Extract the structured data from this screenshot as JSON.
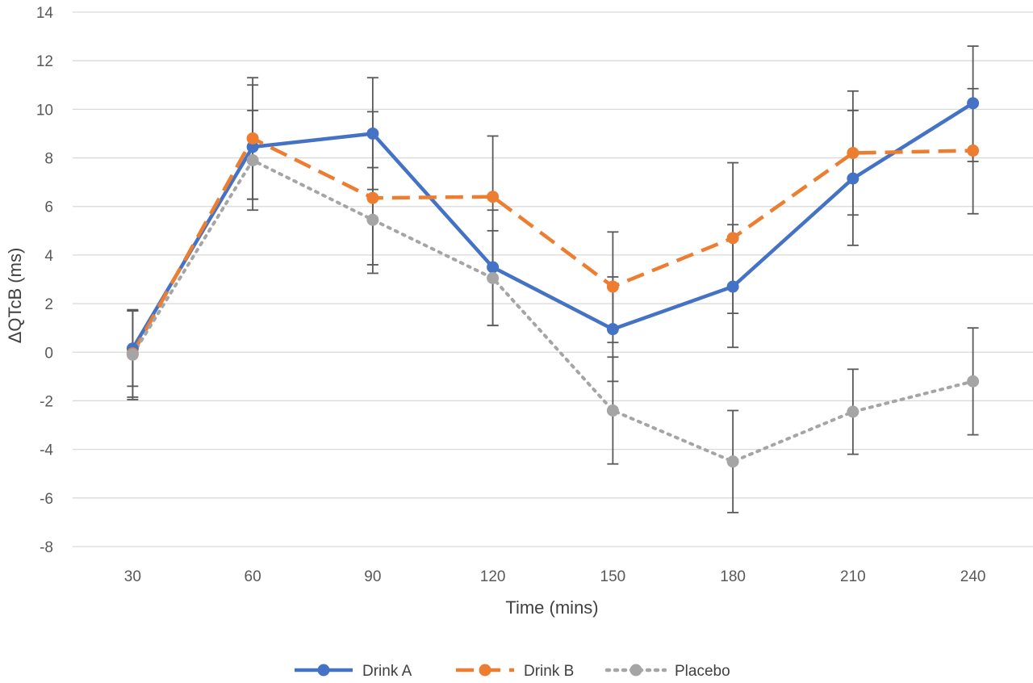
{
  "chart_data": {
    "type": "line",
    "title": "",
    "xlabel": "Time (mins)",
    "ylabel": "ΔQTcB (ms)",
    "x": [
      "30",
      "60",
      "90",
      "120",
      "150",
      "180",
      "210",
      "240"
    ],
    "ylim": [
      -8,
      14
    ],
    "yticks": [
      "14",
      "12",
      "10",
      "8",
      "6",
      "4",
      "2",
      "0",
      "-2",
      "-4",
      "-6",
      "-8"
    ],
    "grid": "horizontal",
    "legend_position": "bottom",
    "series": [
      {
        "name": "Drink A",
        "color": "#4472C4",
        "line_style": "solid",
        "values": [
          0.15,
          8.45,
          9.0,
          3.5,
          0.95,
          2.7,
          7.15,
          10.25
        ],
        "error_low": [
          -1.4,
          6.3,
          6.7,
          1.1,
          -1.2,
          0.2,
          4.4,
          7.85
        ],
        "error_high": [
          1.7,
          11.0,
          11.3,
          5.85,
          3.1,
          5.25,
          9.95,
          12.6
        ]
      },
      {
        "name": "Drink B",
        "color": "#ED7D31",
        "line_style": "dashed",
        "values": [
          -0.05,
          8.8,
          6.35,
          6.4,
          2.7,
          4.7,
          8.2,
          8.3
        ],
        "error_low": [
          -1.85,
          6.3,
          3.25,
          3.5,
          0.4,
          1.6,
          5.65,
          5.7
        ],
        "error_high": [
          1.75,
          11.3,
          9.9,
          8.9,
          4.95,
          7.8,
          10.75,
          10.85
        ]
      },
      {
        "name": "Placebo",
        "color": "#A5A5A5",
        "line_style": "dotted",
        "values": [
          -0.1,
          7.9,
          5.45,
          3.05,
          -2.4,
          -4.5,
          -2.45,
          -1.2
        ],
        "error_low": [
          -1.95,
          5.85,
          3.6,
          1.1,
          -4.6,
          -6.6,
          -4.2,
          -3.4
        ],
        "error_high": [
          1.7,
          9.95,
          7.6,
          5.0,
          -0.2,
          -2.4,
          -0.7,
          1.0
        ]
      }
    ]
  }
}
